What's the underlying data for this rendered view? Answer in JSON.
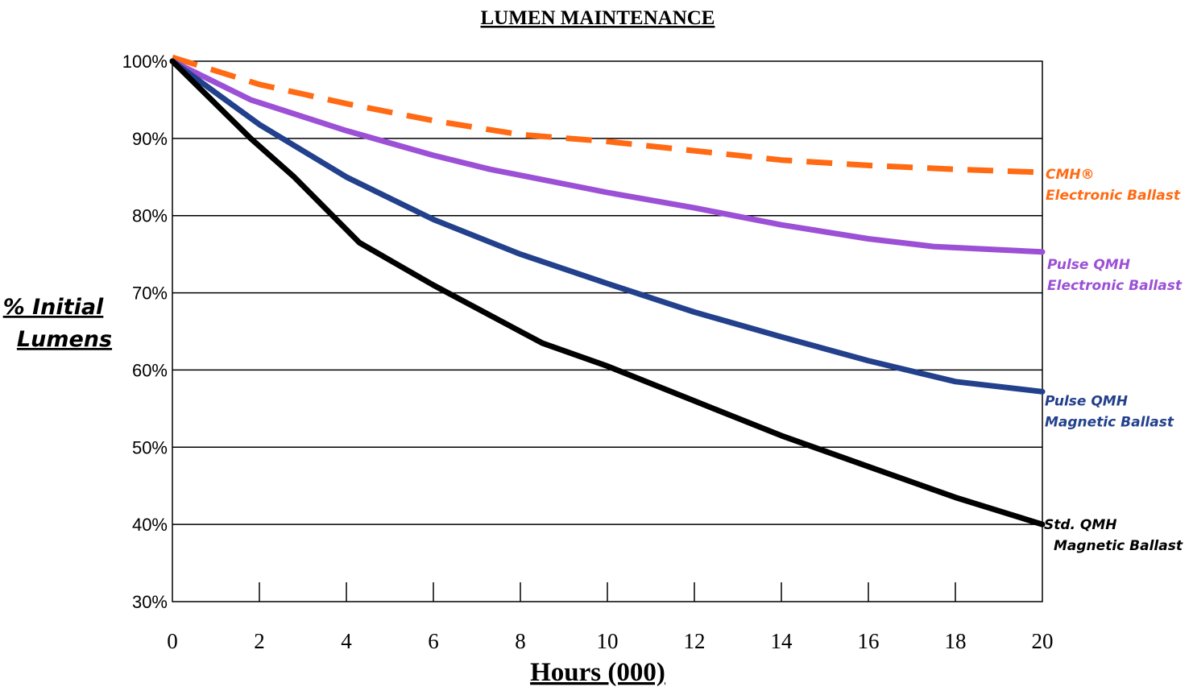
{
  "chart_data": {
    "type": "line",
    "title": "LUMEN MAINTENANCE",
    "xlabel": "Hours (000)",
    "ylabel": [
      "% Initial",
      "Lumens"
    ],
    "xlim": [
      0,
      20
    ],
    "ylim": [
      30,
      100
    ],
    "x_ticks": [
      "0",
      "2",
      "4",
      "6",
      "8",
      "10",
      "12",
      "14",
      "16",
      "18",
      "20"
    ],
    "y_ticks": [
      "30%",
      "40%",
      "50%",
      "60%",
      "70%",
      "80%",
      "90%",
      "100%"
    ],
    "grid": "horizontal",
    "series": [
      {
        "name": "CMH® Electronic Ballast",
        "legend_lines": [
          "CMH®",
          "Electronic Ballast"
        ],
        "color": "#FF6A13",
        "dashed": true,
        "x": [
          0,
          2,
          4,
          6,
          8,
          10,
          12,
          14,
          16,
          18,
          20
        ],
        "y": [
          100.5,
          97,
          94.5,
          92.3,
          90.5,
          89.6,
          88.4,
          87.2,
          86.5,
          86,
          85.6
        ]
      },
      {
        "name": "Pulse QMH Electronic Ballast",
        "legend_lines": [
          "Pulse QMH",
          "Electronic Ballast"
        ],
        "color": "#9C50D6",
        "dashed": false,
        "x": [
          0,
          1.8,
          4,
          6,
          7.3,
          10,
          12,
          14,
          16,
          17.5,
          20
        ],
        "y": [
          100,
          95,
          91,
          87.8,
          86,
          83,
          81,
          78.8,
          77,
          76,
          75.3
        ]
      },
      {
        "name": "Pulse QMH Magnetic Ballast",
        "legend_lines": [
          "Pulse QMH",
          "Magnetic  Ballast"
        ],
        "color": "#22408C",
        "dashed": false,
        "x": [
          0,
          2,
          4,
          6,
          8,
          10,
          12,
          14,
          16,
          18,
          20
        ],
        "y": [
          100,
          91.8,
          85,
          79.5,
          75,
          71.2,
          67.5,
          64.3,
          61.2,
          58.5,
          57.2
        ]
      },
      {
        "name": "Std. QMH Magnetic Ballast",
        "legend_lines": [
          "Std. QMH",
          "Magnetic Ballast"
        ],
        "color": "#000000",
        "dashed": false,
        "x": [
          0,
          1.8,
          2.8,
          4.3,
          6,
          8.5,
          10,
          12,
          14,
          16,
          18,
          20
        ],
        "y": [
          100,
          90,
          85,
          76.5,
          71,
          63.5,
          60.5,
          56,
          51.5,
          47.5,
          43.5,
          40
        ]
      }
    ]
  }
}
